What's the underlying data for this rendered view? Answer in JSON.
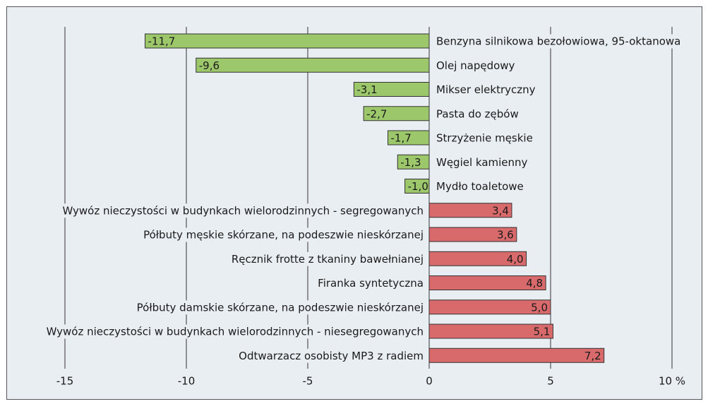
{
  "chart_data": {
    "type": "bar",
    "orientation": "horizontal",
    "categories": [
      "Benzyna silnikowa bezołowiowa, 95-oktanowa",
      "Olej napędowy",
      "Mikser elektryczny",
      "Pasta do zębów",
      "Strzyżenie męskie",
      "Węgiel kamienny",
      "Mydło toaletowe",
      "Wywóz nieczystości w budynkach wielorodzinnych - segregowanych",
      "Półbuty męskie skórzane, na podeszwie nieskórzanej",
      "Ręcznik frotte z tkaniny bawełnianej",
      "Firanka syntetyczna",
      "Półbuty damskie skórzane, na podeszwie nieskórzanej",
      "Wywóz nieczystości w budynkach wielorodzinnych - niesegregowanych",
      "Odtwarzacz osobisty MP3 z radiem"
    ],
    "values": [
      -11.7,
      -9.6,
      -3.1,
      -2.7,
      -1.7,
      -1.3,
      -1.0,
      3.4,
      3.6,
      4.0,
      4.8,
      5.0,
      5.1,
      7.2
    ],
    "value_labels": [
      "-11,7",
      "-9,6",
      "-3,1",
      "-2,7",
      "-1,7",
      "-1,3",
      "-1,0",
      "3,4",
      "3,6",
      "4,0",
      "4,8",
      "5,0",
      "5,1",
      "7,2"
    ],
    "negative_color": "#9dc76b",
    "positive_color": "#d96a6c",
    "xlim": [
      -15,
      10
    ],
    "xticks": [
      -15,
      -10,
      -5,
      0,
      5,
      {
        "value": 10,
        "label": "10 %"
      }
    ],
    "grid": true
  }
}
